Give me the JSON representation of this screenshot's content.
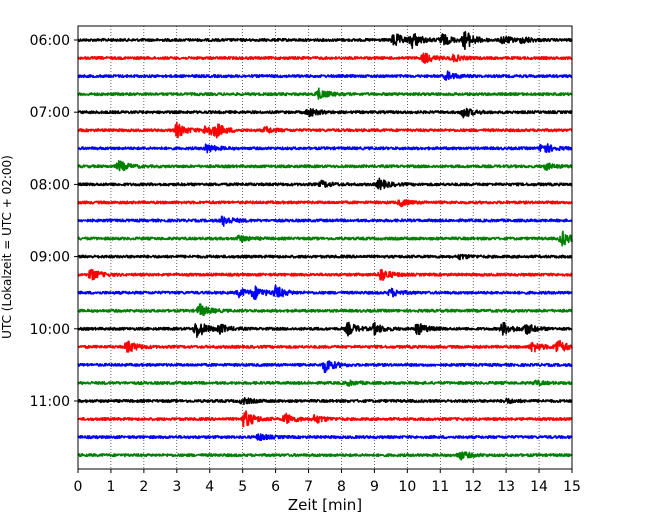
{
  "chart_data": {
    "type": "line",
    "title": "",
    "xlabel": "Zeit  [min]",
    "ylabel": "UTC (Lokalzeit = UTC + 02:00)",
    "xlim": [
      0,
      15
    ],
    "x_ticks": [
      0,
      1,
      2,
      3,
      4,
      5,
      6,
      7,
      8,
      9,
      10,
      11,
      12,
      13,
      14,
      15
    ],
    "x_tick_labels": [
      "0",
      "1",
      "2",
      "3",
      "4",
      "5",
      "6",
      "7",
      "8",
      "9",
      "10",
      "11",
      "12",
      "13",
      "14",
      "15"
    ],
    "y_tick_labels": [
      "06:00",
      "07:00",
      "08:00",
      "09:00",
      "10:00",
      "11:00"
    ],
    "y_tick_rows": [
      0,
      4,
      8,
      12,
      16,
      20
    ],
    "grid": "vertical dotted",
    "row_colors": [
      "#000000",
      "#ff0000",
      "#0000ff",
      "#008000"
    ],
    "rows": [
      {
        "start": "06:00",
        "events": [
          [
            9.6,
            7
          ],
          [
            10.15,
            7
          ],
          [
            11.05,
            6
          ],
          [
            11.75,
            9
          ],
          [
            12.9,
            4
          ],
          [
            13.5,
            3
          ]
        ]
      },
      {
        "start": "06:15",
        "events": [
          [
            10.5,
            5
          ],
          [
            11.4,
            3
          ]
        ]
      },
      {
        "start": "06:30",
        "events": [
          [
            11.2,
            4
          ]
        ]
      },
      {
        "start": "06:45",
        "events": [
          [
            7.3,
            5
          ]
        ]
      },
      {
        "start": "07:00",
        "events": [
          [
            7.0,
            4
          ],
          [
            11.7,
            5
          ]
        ]
      },
      {
        "start": "07:15",
        "events": [
          [
            3.0,
            7
          ],
          [
            3.9,
            6
          ],
          [
            4.2,
            5
          ],
          [
            5.7,
            3
          ]
        ]
      },
      {
        "start": "07:30",
        "events": [
          [
            3.9,
            4
          ],
          [
            14.1,
            6
          ]
        ]
      },
      {
        "start": "07:45",
        "events": [
          [
            1.25,
            5
          ],
          [
            14.2,
            3
          ]
        ]
      },
      {
        "start": "08:00",
        "events": [
          [
            7.4,
            3
          ],
          [
            9.15,
            5
          ]
        ]
      },
      {
        "start": "08:15",
        "events": [
          [
            9.8,
            3
          ]
        ]
      },
      {
        "start": "08:30",
        "events": [
          [
            4.4,
            5
          ]
        ]
      },
      {
        "start": "08:45",
        "events": [
          [
            4.9,
            3
          ],
          [
            14.7,
            7
          ]
        ]
      },
      {
        "start": "09:00",
        "events": [
          [
            11.6,
            2
          ]
        ]
      },
      {
        "start": "09:15",
        "events": [
          [
            0.4,
            5
          ],
          [
            9.2,
            6
          ]
        ]
      },
      {
        "start": "09:30",
        "events": [
          [
            4.9,
            4
          ],
          [
            5.35,
            6
          ],
          [
            6.0,
            6
          ],
          [
            9.5,
            4
          ]
        ]
      },
      {
        "start": "09:45",
        "events": [
          [
            3.7,
            6
          ]
        ]
      },
      {
        "start": "10:00",
        "events": [
          [
            3.6,
            9
          ],
          [
            4.3,
            4
          ],
          [
            8.2,
            6
          ],
          [
            9.0,
            5
          ],
          [
            10.3,
            6
          ],
          [
            12.9,
            6
          ],
          [
            13.6,
            5
          ]
        ]
      },
      {
        "start": "10:15",
        "events": [
          [
            1.5,
            6
          ],
          [
            13.8,
            5
          ],
          [
            14.55,
            7
          ]
        ]
      },
      {
        "start": "10:30",
        "events": [
          [
            7.5,
            7
          ]
        ]
      },
      {
        "start": "10:45",
        "events": [
          [
            8.2,
            2
          ],
          [
            13.9,
            2
          ]
        ]
      },
      {
        "start": "11:00",
        "events": [
          [
            5.0,
            3
          ],
          [
            13.0,
            2
          ]
        ]
      },
      {
        "start": "11:15",
        "events": [
          [
            5.05,
            9
          ],
          [
            6.3,
            5
          ],
          [
            7.2,
            4
          ]
        ]
      },
      {
        "start": "11:30",
        "events": [
          [
            5.5,
            3
          ]
        ]
      },
      {
        "start": "11:45",
        "events": [
          [
            11.6,
            4
          ]
        ]
      }
    ]
  }
}
